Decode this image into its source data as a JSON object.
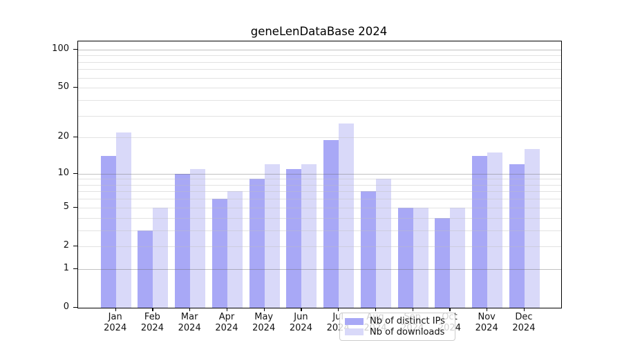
{
  "chart_data": {
    "type": "bar",
    "title": "geneLenDataBase 2024",
    "categories": [
      "Jan",
      "Feb",
      "Mar",
      "Apr",
      "May",
      "Jun",
      "Jul",
      "Aug",
      "Sep",
      "Oct",
      "Nov",
      "Dec"
    ],
    "x_year": "2024",
    "series": [
      {
        "name": "Nb of distinct IPs",
        "color": "#a8a8f6",
        "values": [
          14,
          3,
          10,
          6,
          9,
          11,
          19,
          7,
          5,
          4,
          14,
          12
        ]
      },
      {
        "name": "Nb of downloads",
        "color": "#d9d9f9",
        "values": [
          22,
          5,
          11,
          7,
          12,
          12,
          26,
          9,
          5,
          5,
          15,
          16
        ]
      }
    ],
    "xlabel": "",
    "ylabel": "",
    "yscale": "log1p",
    "ylim": [
      0,
      116
    ],
    "ytick_values": [
      0,
      1,
      2,
      5,
      10,
      20,
      50,
      100
    ],
    "ytick_labels": [
      "0",
      "1",
      "2",
      "5",
      "10",
      "20",
      "50",
      "100"
    ],
    "major_grid_values": [
      1,
      10,
      100
    ],
    "minor_grid_values": [
      2,
      3,
      4,
      5,
      6,
      7,
      8,
      9,
      20,
      30,
      40,
      50,
      60,
      70,
      80,
      90
    ],
    "grid": true,
    "legend_position": "lower center",
    "colors": {
      "bar_ips": "#a8a8f6",
      "bar_downloads": "#d9d9f9",
      "axis": "#000000",
      "text": "#111111",
      "legend_border": "#cccccc"
    }
  }
}
